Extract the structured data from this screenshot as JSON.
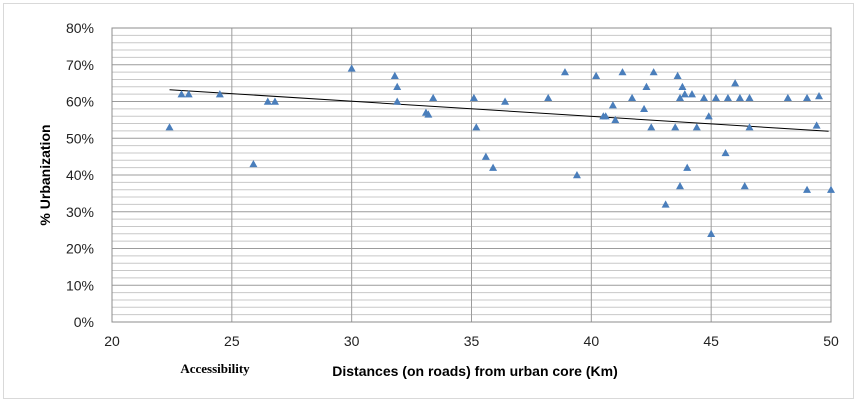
{
  "chart_data": {
    "type": "scatter",
    "title": "",
    "xlabel": "Distances (on roads) from urban core (Km)",
    "ylabel": "% Urbanization",
    "annotation": "Accessibility",
    "xlim": [
      20,
      50
    ],
    "ylim": [
      0,
      0.8
    ],
    "x_ticks": [
      "20",
      "25",
      "30",
      "35",
      "40",
      "45",
      "50"
    ],
    "y_ticks": [
      "0%",
      "10%",
      "20%",
      "30%",
      "40%",
      "50%",
      "60%",
      "70%",
      "80%"
    ],
    "grid": true,
    "legend": "none",
    "marker": "triangle",
    "marker_color": "#4a7ebb",
    "trendline": {
      "type": "linear",
      "x": [
        22.4,
        49.9
      ],
      "y": [
        0.632,
        0.519
      ],
      "color": "#000000"
    },
    "series": [
      {
        "points": [
          [
            22.4,
            0.53
          ],
          [
            22.9,
            0.62
          ],
          [
            23.2,
            0.62
          ],
          [
            24.5,
            0.62
          ],
          [
            25.9,
            0.43
          ],
          [
            26.5,
            0.6
          ],
          [
            26.8,
            0.6
          ],
          [
            30.0,
            0.69
          ],
          [
            31.8,
            0.67
          ],
          [
            31.9,
            0.64
          ],
          [
            31.9,
            0.6
          ],
          [
            33.1,
            0.57
          ],
          [
            33.2,
            0.565
          ],
          [
            33.4,
            0.61
          ],
          [
            35.1,
            0.61
          ],
          [
            35.2,
            0.53
          ],
          [
            35.6,
            0.45
          ],
          [
            35.9,
            0.42
          ],
          [
            36.4,
            0.6
          ],
          [
            38.2,
            0.61
          ],
          [
            38.9,
            0.68
          ],
          [
            39.4,
            0.4
          ],
          [
            40.2,
            0.67
          ],
          [
            40.5,
            0.56
          ],
          [
            40.6,
            0.56
          ],
          [
            40.9,
            0.59
          ],
          [
            41.0,
            0.55
          ],
          [
            41.3,
            0.68
          ],
          [
            41.7,
            0.61
          ],
          [
            42.2,
            0.58
          ],
          [
            42.3,
            0.64
          ],
          [
            42.5,
            0.53
          ],
          [
            42.6,
            0.68
          ],
          [
            43.1,
            0.32
          ],
          [
            43.5,
            0.53
          ],
          [
            43.6,
            0.67
          ],
          [
            43.7,
            0.61
          ],
          [
            43.7,
            0.37
          ],
          [
            43.8,
            0.64
          ],
          [
            43.9,
            0.62
          ],
          [
            44.0,
            0.42
          ],
          [
            44.2,
            0.62
          ],
          [
            44.4,
            0.53
          ],
          [
            44.7,
            0.61
          ],
          [
            44.9,
            0.56
          ],
          [
            45.0,
            0.24
          ],
          [
            45.2,
            0.61
          ],
          [
            45.6,
            0.46
          ],
          [
            45.7,
            0.61
          ],
          [
            46.0,
            0.65
          ],
          [
            46.2,
            0.61
          ],
          [
            46.4,
            0.37
          ],
          [
            46.6,
            0.53
          ],
          [
            46.6,
            0.61
          ],
          [
            48.2,
            0.61
          ],
          [
            49.0,
            0.36
          ],
          [
            49.0,
            0.61
          ],
          [
            49.4,
            0.535
          ],
          [
            49.5,
            0.615
          ],
          [
            50.0,
            0.36
          ]
        ]
      }
    ]
  }
}
